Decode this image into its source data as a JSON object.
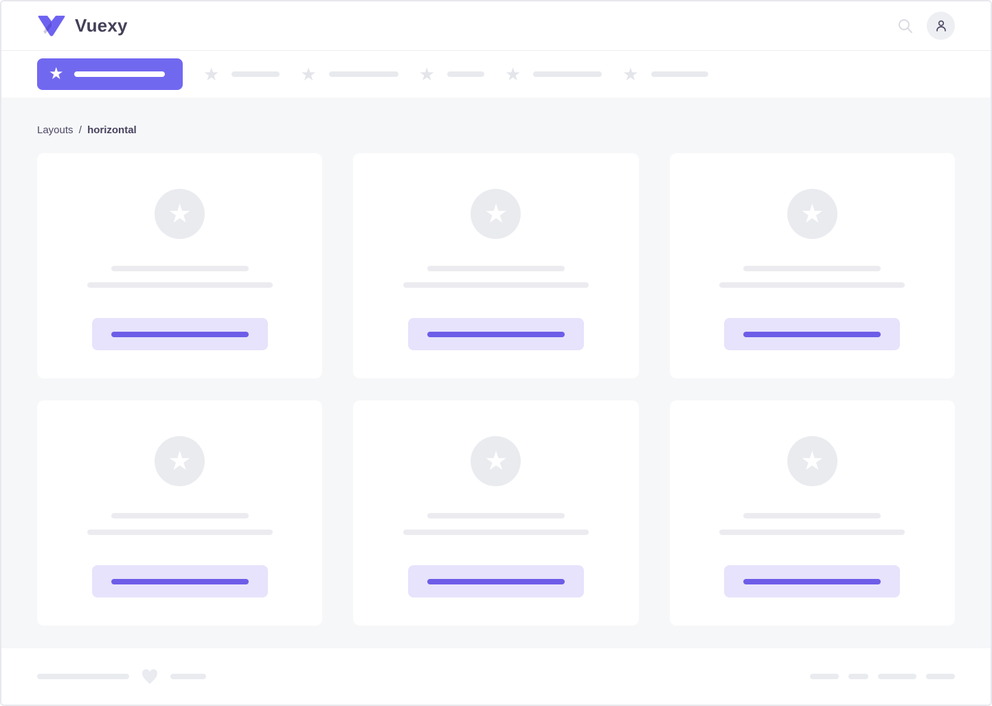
{
  "colors": {
    "primary": "#7168f0",
    "primary_dark": "#4a3fc6",
    "button_bar": "#6d5de8",
    "lavender": "#e7e3fc",
    "placeholder": "#e9ebf0",
    "content_bg": "#f6f7f9",
    "text_dark": "#444057",
    "border": "#e7e8ee"
  },
  "glyphs": {
    "star": "★"
  },
  "icons": {
    "logo": "vuexy-v-logo",
    "search": "magnifier",
    "avatar": "person",
    "nav_placeholder": "star",
    "card_placeholder": "star",
    "footer_placeholder": "heart"
  },
  "header": {
    "brand": "Vuexy"
  },
  "navbar": {
    "active_bar_width": 132,
    "items": [
      70,
      101,
      54,
      100,
      83
    ]
  },
  "breadcrumb": {
    "parent": "Layouts",
    "separator": "/",
    "current": "horizontal"
  },
  "cards": {
    "count": 6,
    "title_bar_width": 200,
    "subtitle_bar_width": 270,
    "button_bar_width": 200
  },
  "footer": {
    "left_bars": [
      134,
      52
    ],
    "right_bars": [
      42,
      29,
      56,
      42
    ]
  }
}
